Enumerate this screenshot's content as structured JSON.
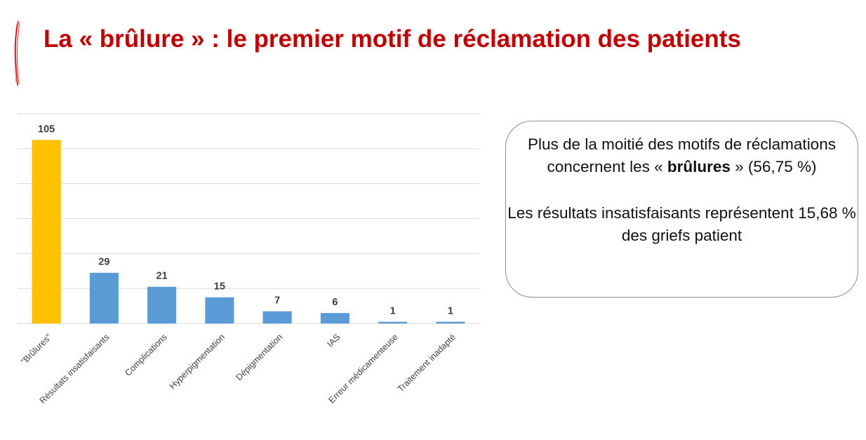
{
  "slide": {
    "title": "La « brûlure »  : le premier motif de réclamation des patients",
    "title_color": "#c00000"
  },
  "callout": {
    "p1_before": "Plus de la moitié des motifs de réclamations concernent les « ",
    "p1_bold": "brûlures",
    "p1_after": " » (56,75 %)",
    "p2": "Les résultats insatisfaisants représentent 15,68 % des griefs patient"
  },
  "chart_data": {
    "type": "bar",
    "categories": [
      "\"Brûlures\"",
      "Résultats insatisfaisants",
      "Complications",
      "Hyperpigmentation",
      "Dépigmentation",
      "IAS",
      "Erreur médicamenteuse",
      "Traitement inadapté"
    ],
    "values": [
      105,
      29,
      21,
      15,
      7,
      6,
      1,
      1
    ],
    "data_labels": [
      "105",
      "29",
      "21",
      "15",
      "7",
      "6",
      "1",
      "1"
    ],
    "ylim": [
      0,
      120
    ],
    "grid": true,
    "highlight_color": "#ffc000",
    "bar_color": "#5b9bd5",
    "gridline_color": "#d9d9d9"
  }
}
